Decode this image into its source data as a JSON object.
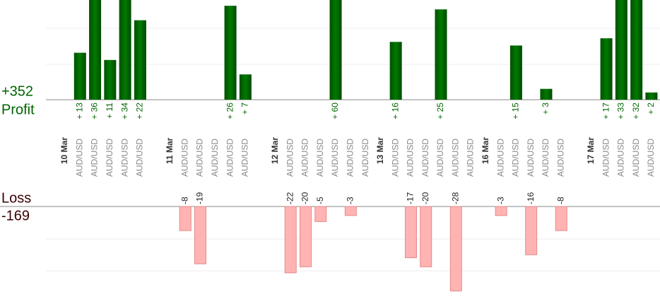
{
  "chart_data": {
    "type": "bar",
    "categories": [
      "10 Mar",
      "AUD/USD",
      "AUD/USD",
      "AUD/USD",
      "AUD/USD",
      "AUD/USD",
      null,
      "11 Mar",
      "AUD/USD",
      "AUD/USD",
      "AUD/USD",
      "AUD/USD",
      "AUD/USD",
      null,
      "12 Mar",
      "AUD/USD",
      "AUD/USD",
      "AUD/USD",
      "AUD/USD",
      "AUD/USD",
      "AUD/USD",
      "13 Mar",
      "AUD/USD",
      "AUD/USD",
      "AUD/USD",
      "AUD/USD",
      "AUD/USD",
      "AUD/USD",
      "16 Mar",
      "AUD/USD",
      "AUD/USD",
      "AUD/USD",
      "AUD/USD",
      "AUD/USD",
      null,
      "17 Mar",
      "AUD/USD",
      "AUD/USD",
      "AUD/USD",
      "AUD/USD"
    ],
    "date_categories": [
      "10 Mar",
      "11 Mar",
      "12 Mar",
      "13 Mar",
      "16 Mar",
      "17 Mar"
    ],
    "series": [
      {
        "name": "Profit",
        "total": "+352",
        "color": "#006400",
        "ylim": [
          0,
          27.6
        ],
        "values": [
          null,
          13,
          36,
          11,
          34,
          22,
          null,
          null,
          null,
          null,
          null,
          26,
          7,
          null,
          null,
          null,
          null,
          null,
          60,
          null,
          null,
          null,
          16,
          null,
          null,
          25,
          null,
          null,
          null,
          null,
          15,
          null,
          3,
          null,
          null,
          null,
          17,
          33,
          32,
          2
        ],
        "value_labels": [
          null,
          "+ 13",
          "+ 36",
          "+ 11",
          "+ 34",
          "+ 22",
          null,
          null,
          null,
          null,
          null,
          "+ 26",
          "+ 7",
          null,
          null,
          null,
          null,
          null,
          "+ 60",
          null,
          null,
          null,
          "+ 16",
          null,
          null,
          "+ 25",
          null,
          null,
          null,
          null,
          "+ 15",
          null,
          "+ 3",
          null,
          null,
          null,
          "+ 17",
          "+ 33",
          "+ 32",
          "+ 2"
        ]
      },
      {
        "name": "Loss",
        "total": "-169",
        "color": "#ffb3b3",
        "ylim": [
          -30,
          0
        ],
        "values": [
          null,
          null,
          null,
          null,
          null,
          null,
          null,
          null,
          -8,
          -19,
          null,
          null,
          null,
          null,
          null,
          -22,
          -20,
          -5,
          null,
          -3,
          null,
          null,
          null,
          -17,
          -20,
          null,
          -28,
          null,
          null,
          -3,
          null,
          -16,
          null,
          -8,
          null,
          null,
          null,
          null,
          null,
          null
        ]
      }
    ]
  }
}
